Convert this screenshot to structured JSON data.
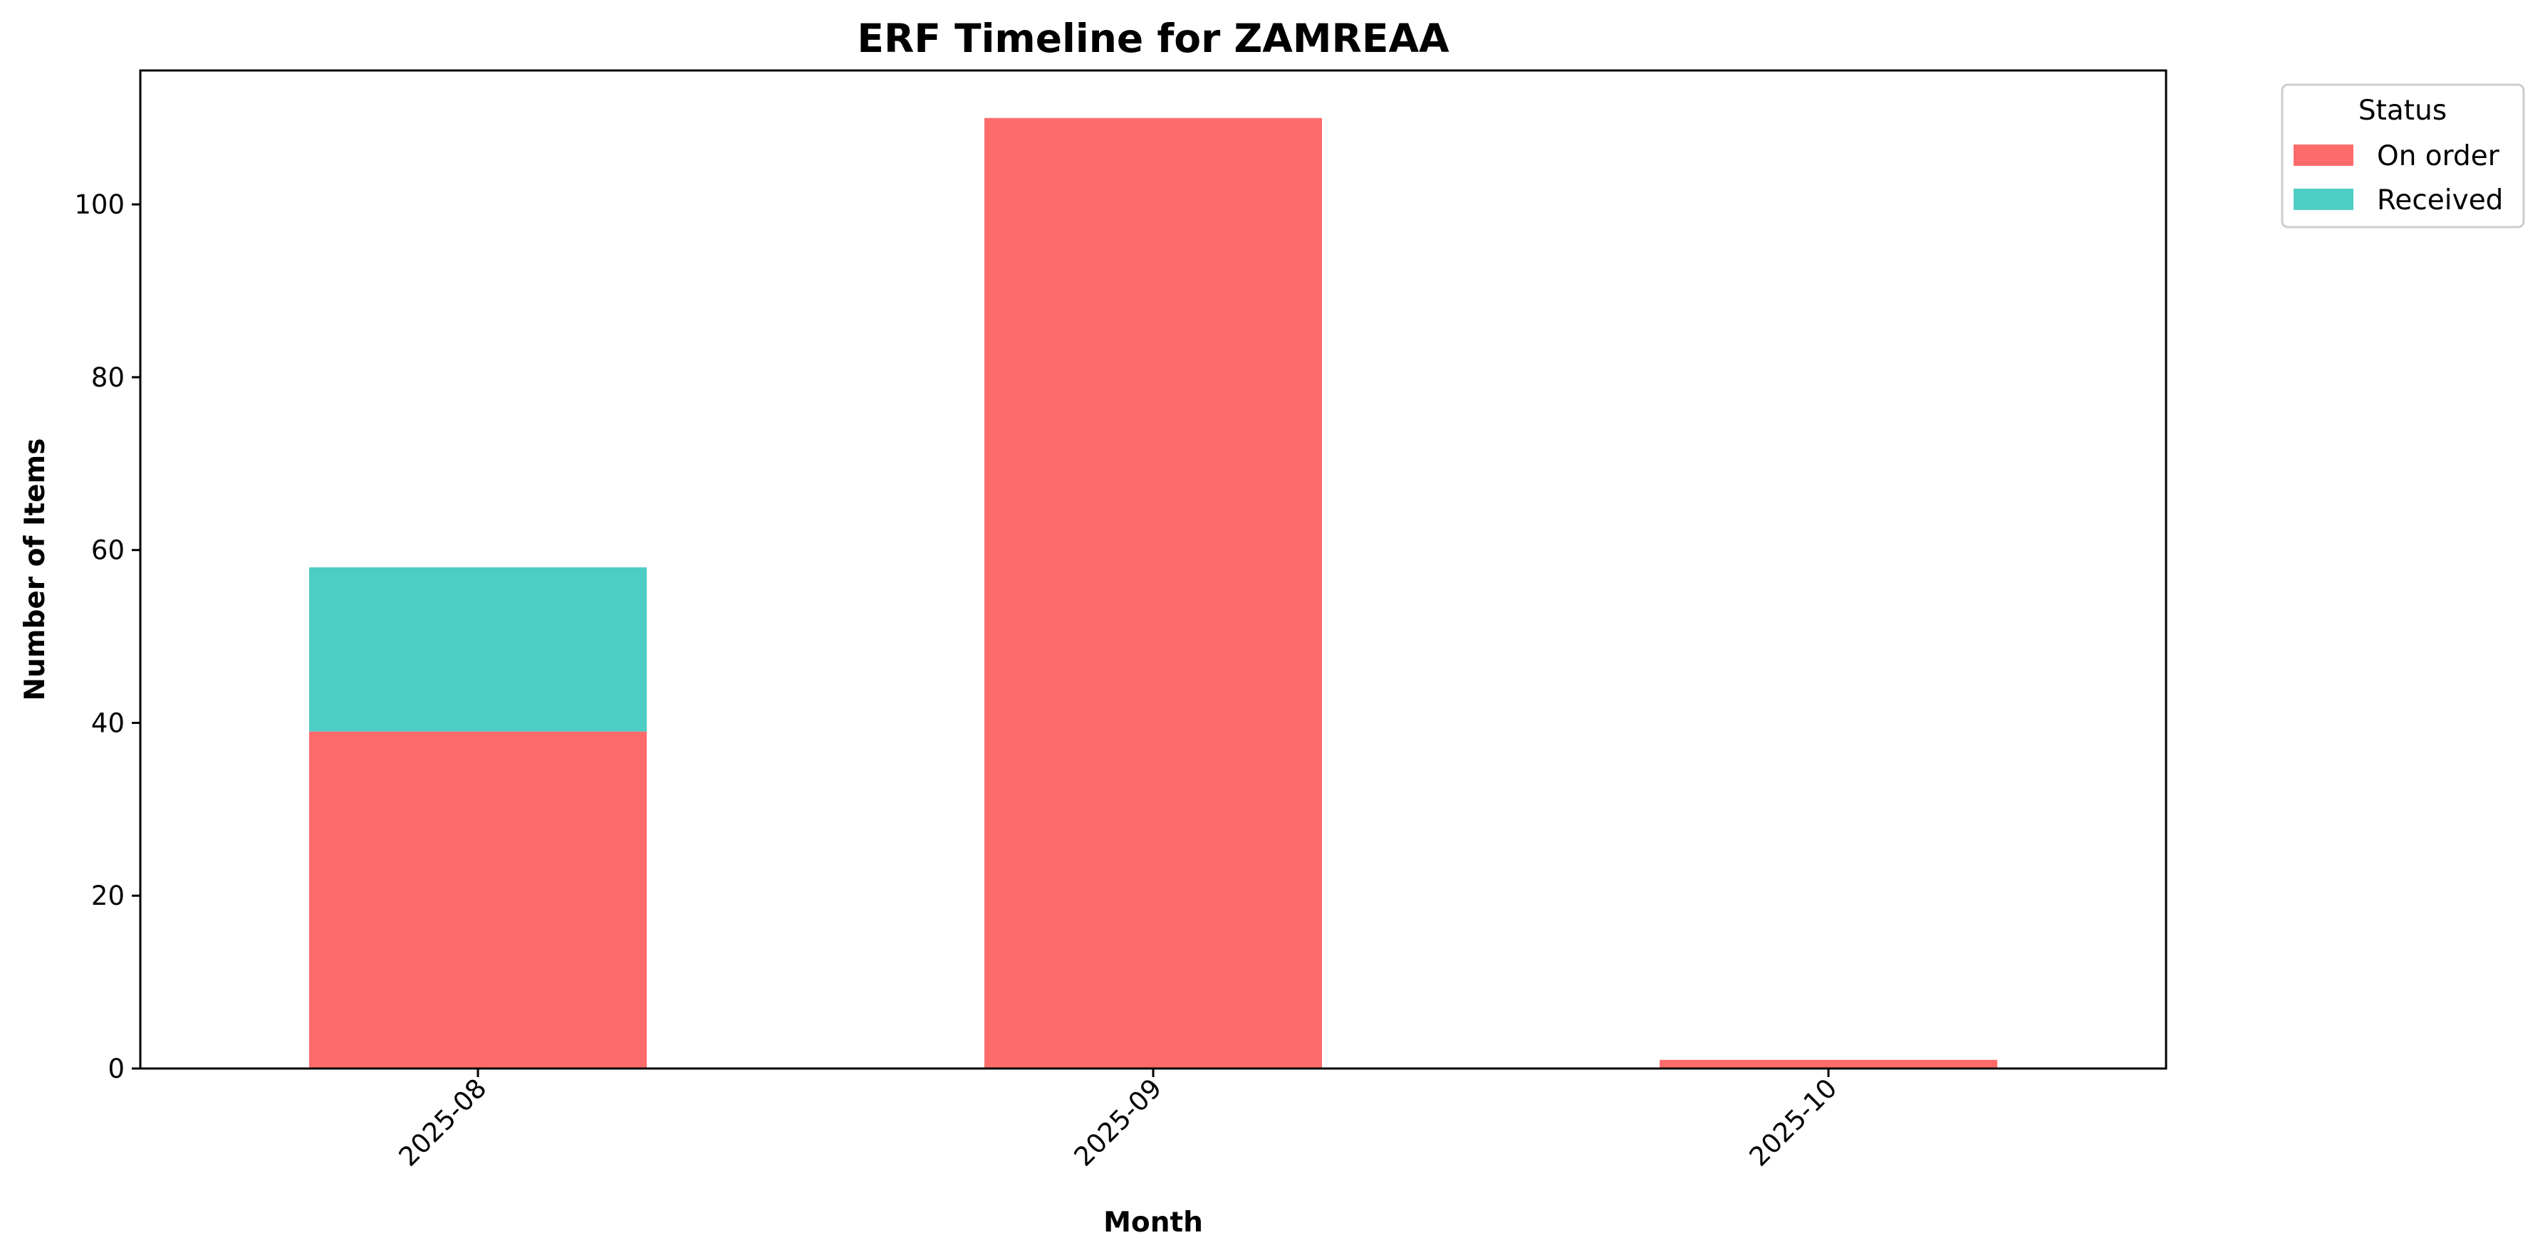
{
  "chart_data": {
    "type": "bar",
    "stacked": true,
    "title": "ERF Timeline for ZAMREAA",
    "xlabel": "Month",
    "ylabel": "Number of Items",
    "categories": [
      "2025-08",
      "2025-09",
      "2025-10"
    ],
    "series": [
      {
        "name": "On order",
        "color": "#ff6b6b",
        "values": [
          39,
          110,
          1
        ]
      },
      {
        "name": "Received",
        "color": "#4ecdc4",
        "values": [
          19,
          0,
          0
        ]
      }
    ],
    "ylim": [
      0,
      115.5
    ],
    "yticks": [
      0,
      20,
      40,
      60,
      80,
      100
    ],
    "legend": {
      "title": "Status",
      "position": "outside-top-right"
    },
    "grid": false
  }
}
